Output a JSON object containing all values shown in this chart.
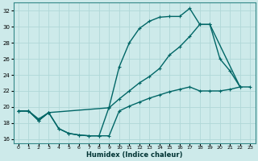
{
  "xlabel": "Humidex (Indice chaleur)",
  "bg_color": "#cdeaea",
  "grid_color": "#b0d8d8",
  "line_color": "#006666",
  "xlim": [
    -0.5,
    23.5
  ],
  "ylim": [
    15.5,
    33.0
  ],
  "xticks": [
    0,
    1,
    2,
    3,
    4,
    5,
    6,
    7,
    8,
    9,
    10,
    11,
    12,
    13,
    14,
    15,
    16,
    17,
    18,
    19,
    20,
    21,
    22,
    23
  ],
  "yticks": [
    16,
    18,
    20,
    22,
    24,
    26,
    28,
    30,
    32
  ],
  "line1_x": [
    0,
    1,
    2,
    3,
    4,
    5,
    6,
    7,
    8,
    9,
    10,
    11,
    12,
    13,
    14,
    15,
    16,
    17,
    18,
    19,
    20,
    21,
    22
  ],
  "line1_y": [
    19.5,
    19.5,
    18.3,
    19.3,
    17.3,
    16.7,
    16.5,
    16.4,
    16.4,
    20.0,
    25.0,
    28.0,
    29.8,
    30.7,
    31.2,
    31.3,
    31.3,
    32.3,
    30.3,
    30.3,
    26.0,
    24.5,
    22.5
  ],
  "line2_x": [
    0,
    1,
    2,
    3,
    9,
    10,
    11,
    12,
    13,
    14,
    15,
    16,
    17,
    18,
    19,
    22
  ],
  "line2_y": [
    19.5,
    19.5,
    18.3,
    19.3,
    19.9,
    21.0,
    22.0,
    23.0,
    23.8,
    24.8,
    26.5,
    27.5,
    28.8,
    30.3,
    30.3,
    22.5
  ],
  "line3_x": [
    0,
    1,
    2,
    3,
    4,
    5,
    6,
    7,
    8,
    9,
    10,
    11,
    12,
    13,
    14,
    15,
    16,
    17,
    18,
    19,
    20,
    21,
    22,
    23
  ],
  "line3_y": [
    19.5,
    19.5,
    18.5,
    19.3,
    17.3,
    16.7,
    16.5,
    16.4,
    16.4,
    16.4,
    19.5,
    20.1,
    20.6,
    21.1,
    21.5,
    21.9,
    22.2,
    22.5,
    22.0,
    22.0,
    22.0,
    22.2,
    22.5,
    22.5
  ]
}
